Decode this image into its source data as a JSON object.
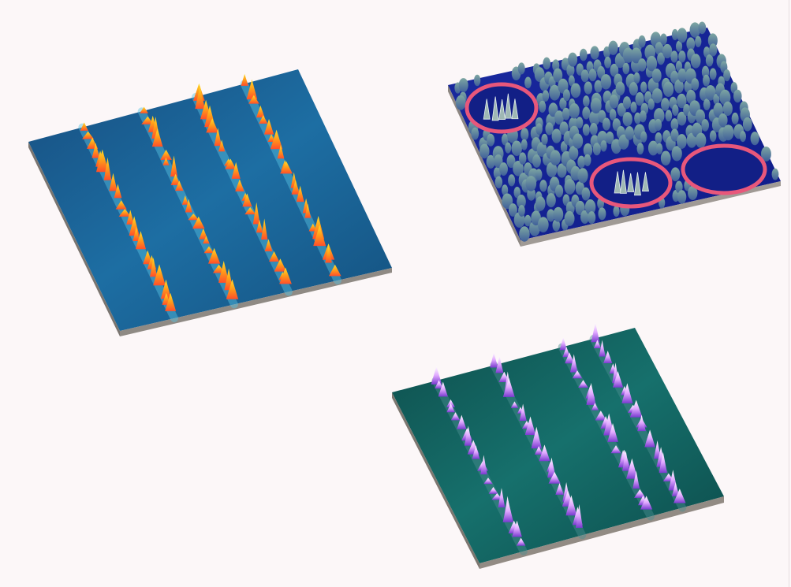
{
  "scene": {
    "background": "#fcf7f8",
    "panels": [
      {
        "name": "blue-stripe-afm-panel",
        "surface_color": "#1a5a8c",
        "stripe_color": "#58c0e0",
        "peak_colors": [
          "#ffd21a",
          "#ff8a1f",
          "#ff4e2a"
        ],
        "side_color": "#8f8a84"
      },
      {
        "name": "navy-nodule-afm-panel",
        "surface_color": "#16239a",
        "nodule_color": "#6f9e9b",
        "ring_color": "#e8577b",
        "side_color": "#a09a95"
      },
      {
        "name": "teal-stripe-afm-panel",
        "surface_color": "#0f5b58",
        "stripe_color": "#4b8d90",
        "peak_colors": [
          "#ffffff",
          "#e6a8ff",
          "#9c4de0"
        ],
        "side_color": "#928b84"
      }
    ]
  }
}
